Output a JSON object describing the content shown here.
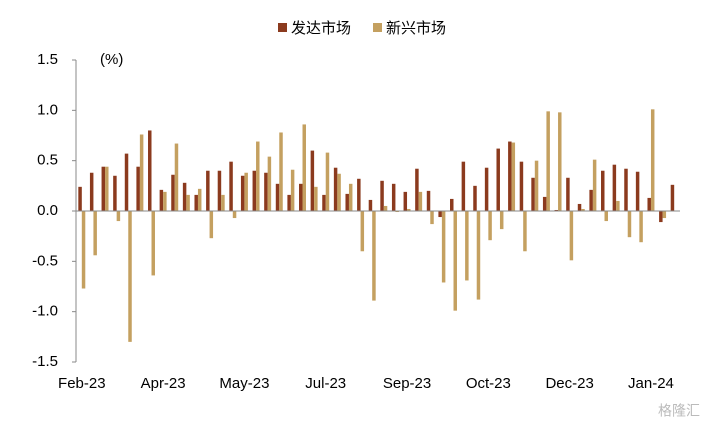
{
  "chart_data": {
    "type": "bar",
    "unit_label": "(%)",
    "watermark": "格隆汇",
    "categories": [
      "Feb-23",
      null,
      null,
      null,
      null,
      null,
      null,
      "Apr-23",
      null,
      null,
      null,
      null,
      null,
      null,
      "May-23",
      null,
      null,
      null,
      null,
      null,
      null,
      "Jul-23",
      null,
      null,
      null,
      null,
      null,
      null,
      "Sep-23",
      null,
      null,
      null,
      null,
      null,
      null,
      "Oct-23",
      null,
      null,
      null,
      null,
      null,
      null,
      "Dec-23",
      null,
      null,
      null,
      null,
      null,
      null,
      "Jan-24",
      null,
      null
    ],
    "series": [
      {
        "name": "发达市场",
        "color": "#8b3a1e",
        "values": [
          0.24,
          0.38,
          0.44,
          0.35,
          0.57,
          0.44,
          0.8,
          0.21,
          0.36,
          0.28,
          0.16,
          0.4,
          0.4,
          0.49,
          0.35,
          0.4,
          0.38,
          0.27,
          0.16,
          0.27,
          0.6,
          0.16,
          0.43,
          0.17,
          0.32,
          0.11,
          0.3,
          0.27,
          0.19,
          0.42,
          0.2,
          -0.06,
          0.12,
          0.49,
          0.25,
          0.43,
          0.62,
          0.69,
          0.49,
          0.33,
          0.14,
          0.01,
          0.33,
          0.07,
          0.21,
          0.4,
          0.46,
          0.42,
          0.39,
          0.13,
          -0.11,
          0.26
        ]
      },
      {
        "name": "新兴市场",
        "color": "#c4a060",
        "values": [
          -0.77,
          -0.44,
          0.44,
          -0.1,
          -1.3,
          0.76,
          -0.64,
          0.19,
          0.67,
          0.16,
          0.22,
          -0.27,
          0.16,
          -0.07,
          0.38,
          0.69,
          0.54,
          0.78,
          0.41,
          0.86,
          0.24,
          0.58,
          0.37,
          0.27,
          -0.4,
          -0.89,
          0.05,
          -0.01,
          0.02,
          0.19,
          -0.13,
          -0.71,
          -0.99,
          -0.69,
          -0.88,
          -0.29,
          -0.18,
          0.68,
          -0.4,
          0.5,
          0.99,
          0.98,
          -0.49,
          0.02,
          0.51,
          -0.1,
          0.1,
          -0.26,
          -0.31,
          1.01,
          -0.07,
          0.0
        ]
      }
    ],
    "ylim": [
      -1.5,
      1.5
    ],
    "yticks": [
      1.5,
      {
        "value": 1,
        "label": "1.0"
      },
      0.5,
      {
        "value": 0,
        "label": "0.0"
      },
      -0.5,
      {
        "value": -1,
        "label": "-1.0"
      },
      -1.5
    ],
    "legend": "top"
  }
}
